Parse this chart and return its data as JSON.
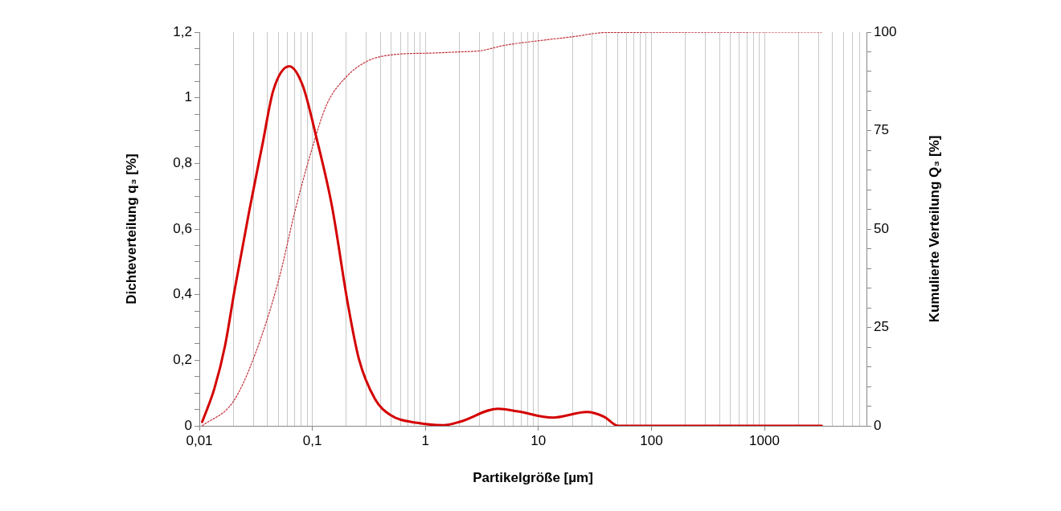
{
  "chart_data": {
    "type": "line",
    "xlabel": "Partikelgröße [µm]",
    "ylabel": "Dichteverteilung q₃ [%]",
    "y2label": "Kumulierte Verteilung Q₃ [%]",
    "log": "x",
    "grid": "x",
    "legend": false,
    "marker": "none",
    "xlim": [
      0.01,
      8000
    ],
    "xticks": [
      {
        "value": 0.01,
        "label": "0,01"
      },
      {
        "value": 0.02,
        "label": null
      },
      {
        "value": 0.03,
        "label": null
      },
      {
        "value": 0.04,
        "label": null
      },
      {
        "value": 0.05,
        "label": null
      },
      {
        "value": 0.06,
        "label": null
      },
      {
        "value": 0.07,
        "label": null
      },
      {
        "value": 0.08,
        "label": null
      },
      {
        "value": 0.09,
        "label": null
      },
      {
        "value": 0.1,
        "label": "0,1"
      },
      {
        "value": 0.2,
        "label": null
      },
      {
        "value": 0.3,
        "label": null
      },
      {
        "value": 0.4,
        "label": null
      },
      {
        "value": 0.5,
        "label": null
      },
      {
        "value": 0.6,
        "label": null
      },
      {
        "value": 0.7,
        "label": null
      },
      {
        "value": 0.8,
        "label": null
      },
      {
        "value": 0.9,
        "label": null
      },
      1,
      {
        "value": 2,
        "label": null
      },
      {
        "value": 3,
        "label": null
      },
      {
        "value": 4,
        "label": null
      },
      {
        "value": 5,
        "label": null
      },
      {
        "value": 6,
        "label": null
      },
      {
        "value": 7,
        "label": null
      },
      {
        "value": 8,
        "label": null
      },
      {
        "value": 9,
        "label": null
      },
      10,
      {
        "value": 20,
        "label": null
      },
      {
        "value": 30,
        "label": null
      },
      {
        "value": 40,
        "label": null
      },
      {
        "value": 50,
        "label": null
      },
      {
        "value": 60,
        "label": null
      },
      {
        "value": 70,
        "label": null
      },
      {
        "value": 80,
        "label": null
      },
      {
        "value": 90,
        "label": null
      },
      100,
      {
        "value": 200,
        "label": null
      },
      {
        "value": 300,
        "label": null
      },
      {
        "value": 400,
        "label": null
      },
      {
        "value": 500,
        "label": null
      },
      {
        "value": 600,
        "label": null
      },
      {
        "value": 700,
        "label": null
      },
      {
        "value": 800,
        "label": null
      },
      {
        "value": 900,
        "label": null
      },
      1000,
      {
        "value": 2000,
        "label": null
      },
      {
        "value": 3000,
        "label": null
      },
      {
        "value": 4000,
        "label": null
      },
      {
        "value": 5000,
        "label": null
      },
      {
        "value": 6000,
        "label": null
      },
      {
        "value": 7000,
        "label": null
      }
    ],
    "ylim": [
      0,
      1.2
    ],
    "yticks": [
      0,
      {
        "value": 0.05,
        "label": null
      },
      {
        "value": 0.1,
        "label": null
      },
      {
        "value": 0.15,
        "label": null
      },
      {
        "value": 0.2,
        "label": "0,2"
      },
      {
        "value": 0.25,
        "label": null
      },
      {
        "value": 0.3,
        "label": null
      },
      {
        "value": 0.35,
        "label": null
      },
      {
        "value": 0.4,
        "label": "0,4"
      },
      {
        "value": 0.45,
        "label": null
      },
      {
        "value": 0.5,
        "label": null
      },
      {
        "value": 0.55,
        "label": null
      },
      {
        "value": 0.6,
        "label": "0,6"
      },
      {
        "value": 0.65,
        "label": null
      },
      {
        "value": 0.7,
        "label": null
      },
      {
        "value": 0.75,
        "label": null
      },
      {
        "value": 0.8,
        "label": "0,8"
      },
      {
        "value": 0.85,
        "label": null
      },
      {
        "value": 0.9,
        "label": null
      },
      {
        "value": 0.95,
        "label": null
      },
      1,
      {
        "value": 1.05,
        "label": null
      },
      {
        "value": 1.1,
        "label": null
      },
      {
        "value": 1.15,
        "label": null
      },
      {
        "value": 1.2,
        "label": "1,2"
      }
    ],
    "y2lim": [
      0,
      100
    ],
    "y2ticks": [
      0,
      {
        "value": 5,
        "label": null
      },
      {
        "value": 10,
        "label": null
      },
      {
        "value": 15,
        "label": null
      },
      {
        "value": 20,
        "label": null
      },
      25,
      {
        "value": 30,
        "label": null
      },
      {
        "value": 35,
        "label": null
      },
      {
        "value": 40,
        "label": null
      },
      {
        "value": 45,
        "label": null
      },
      50,
      {
        "value": 55,
        "label": null
      },
      {
        "value": 60,
        "label": null
      },
      {
        "value": 65,
        "label": null
      },
      {
        "value": 70,
        "label": null
      },
      75,
      {
        "value": 80,
        "label": null
      },
      {
        "value": 85,
        "label": null
      },
      {
        "value": 90,
        "label": null
      },
      {
        "value": 95,
        "label": null
      },
      100
    ],
    "series": [
      {
        "color": "#d40000",
        "line_style": "solid",
        "x": [
          0.0106,
          0.0136,
          0.0169,
          0.0204,
          0.0276,
          0.0362,
          0.045,
          0.0625,
          0.0822,
          0.108,
          0.149,
          0.207,
          0.258,
          0.358,
          0.49,
          0.85,
          1.44,
          2.04,
          4.38,
          6.6,
          13.4,
          26.8,
          38,
          51,
          3220
        ],
        "values": [
          0.012,
          0.114,
          0.245,
          0.409,
          0.654,
          0.858,
          1.021,
          1.096,
          1.037,
          0.882,
          0.67,
          0.368,
          0.204,
          0.082,
          0.033,
          0.009,
          0.002,
          0.013,
          0.052,
          0.044,
          0.025,
          0.042,
          0.028,
          0,
          0
        ]
      },
      {
        "color": "#c0303a",
        "line_style": "dotted",
        "axis": "y2",
        "x": [
          0.0106,
          0.0199,
          0.0307,
          0.05,
          0.07,
          0.097,
          0.134,
          0.196,
          0.3,
          0.49,
          1.19,
          2.04,
          3.1,
          4.9,
          9.9,
          19.8,
          40,
          3220
        ],
        "values": [
          0,
          6.1,
          17.7,
          36.7,
          54.4,
          69.4,
          81.6,
          88.4,
          92.5,
          94.2,
          94.7,
          95,
          95.3,
          96.6,
          97.8,
          98.8,
          99.9,
          100
        ]
      }
    ]
  }
}
